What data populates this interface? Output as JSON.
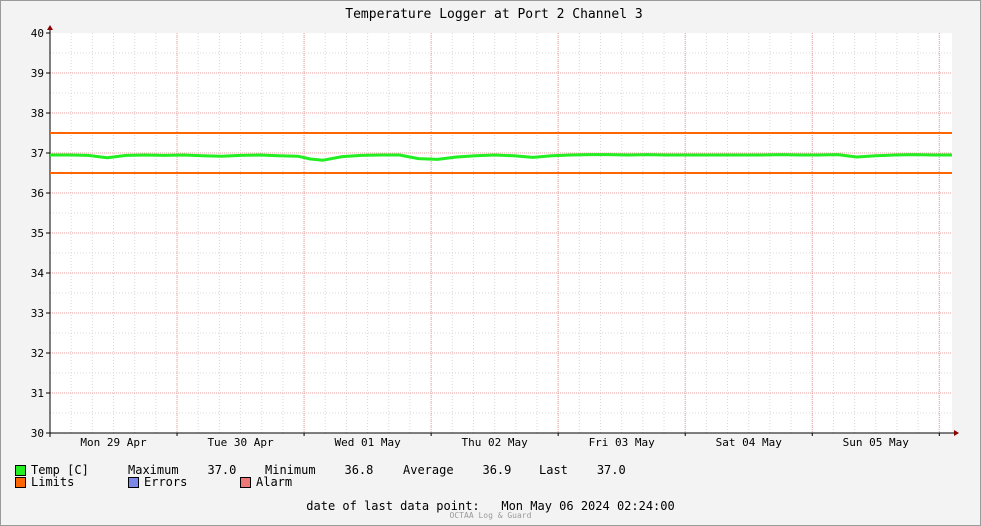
{
  "colors": {
    "background": "#f3f3f3",
    "plot_background": "#ffffff",
    "major_grid": "#e8a0a0",
    "minor_grid": "#d8d8d8",
    "temp": "#22ee22",
    "limits": "#ff6600",
    "errors": "#7b88e8",
    "alarm": "#ee7777"
  },
  "chart_data": {
    "type": "line",
    "title": "Temperature Logger at Port 2 Channel 3",
    "ylim": [
      30,
      40
    ],
    "y_ticks": [
      30,
      31,
      32,
      33,
      34,
      35,
      36,
      37,
      38,
      39,
      40
    ],
    "x_range_days": 7.1,
    "x_tick_labels": [
      "Mon 29 Apr",
      "Tue 30 Apr",
      "Wed 01 May",
      "Thu 02 May",
      "Fri 03 May",
      "Sat 04 May",
      "Sun 05 May"
    ],
    "limits": [
      37.5,
      36.5
    ],
    "series": [
      {
        "name": "Temp [C]",
        "x": [
          0,
          0.15,
          0.3,
          0.45,
          0.6,
          0.75,
          0.9,
          1.05,
          1.2,
          1.35,
          1.5,
          1.65,
          1.8,
          1.95,
          2.05,
          2.15,
          2.3,
          2.45,
          2.6,
          2.75,
          2.9,
          3.05,
          3.2,
          3.35,
          3.5,
          3.65,
          3.8,
          3.95,
          4.1,
          4.25,
          4.4,
          4.55,
          4.7,
          4.85,
          5.0,
          5.15,
          5.3,
          5.45,
          5.6,
          5.75,
          5.9,
          6.05,
          6.2,
          6.35,
          6.5,
          6.65,
          6.8,
          6.95,
          7.1
        ],
        "values": [
          36.95,
          36.95,
          36.94,
          36.88,
          36.94,
          36.95,
          36.94,
          36.95,
          36.93,
          36.92,
          36.94,
          36.95,
          36.93,
          36.92,
          36.85,
          36.82,
          36.91,
          36.94,
          36.95,
          36.95,
          36.86,
          36.84,
          36.9,
          36.93,
          36.95,
          36.93,
          36.89,
          36.93,
          36.95,
          36.96,
          36.96,
          36.95,
          36.96,
          36.95,
          36.95,
          36.95,
          36.95,
          36.95,
          36.95,
          36.96,
          36.95,
          36.95,
          36.96,
          36.9,
          36.93,
          36.95,
          36.96,
          36.95,
          36.95
        ]
      }
    ]
  },
  "legend": {
    "temp_label": "Temp [C]",
    "maximum_label": "Maximum",
    "maximum_value": "37.0",
    "minimum_label": "Minimum",
    "minimum_value": "36.8",
    "average_label": "Average",
    "average_value": "36.9",
    "last_label": "Last",
    "last_value": "37.0",
    "limits_label": "Limits",
    "errors_label": "Errors",
    "alarm_label": "Alarm"
  },
  "footer": {
    "last_data_point_label": "date of last data point:",
    "last_data_point_value": "Mon May 06 2024 02:24:00",
    "watermark": "OCTAA Log & Guard"
  }
}
